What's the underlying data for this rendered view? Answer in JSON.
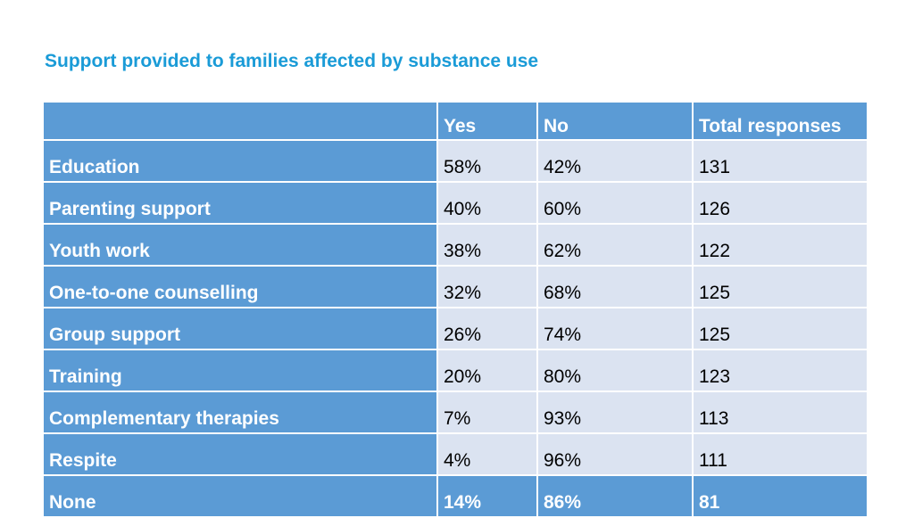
{
  "slide": {
    "title": "Support provided to families affected by substance use"
  },
  "chart_data": {
    "type": "table",
    "title": "Support provided to families affected by substance use",
    "columns": [
      "",
      "Yes",
      "No",
      "Total responses"
    ],
    "rows": [
      {
        "label": "Education",
        "yes": "58%",
        "no": "42%",
        "total": "131"
      },
      {
        "label": "Parenting support",
        "yes": "40%",
        "no": "60%",
        "total": "126"
      },
      {
        "label": "Youth work",
        "yes": "38%",
        "no": "62%",
        "total": "122"
      },
      {
        "label": "One-to-one counselling",
        "yes": "32%",
        "no": "68%",
        "total": "125"
      },
      {
        "label": "Group support",
        "yes": "26%",
        "no": "74%",
        "total": "125"
      },
      {
        "label": "Training",
        "yes": "20%",
        "no": "80%",
        "total": "123"
      },
      {
        "label": "Complementary therapies",
        "yes": "7%",
        "no": "93%",
        "total": "113"
      },
      {
        "label": "Respite",
        "yes": "4%",
        "no": "96%",
        "total": "111"
      }
    ],
    "summary_row": {
      "label": "None",
      "yes": "14%",
      "no": "86%",
      "total": "81"
    },
    "colors": {
      "header": "#5b9bd5",
      "cell": "#dbe3f1",
      "title": "#1a9bd7"
    }
  }
}
